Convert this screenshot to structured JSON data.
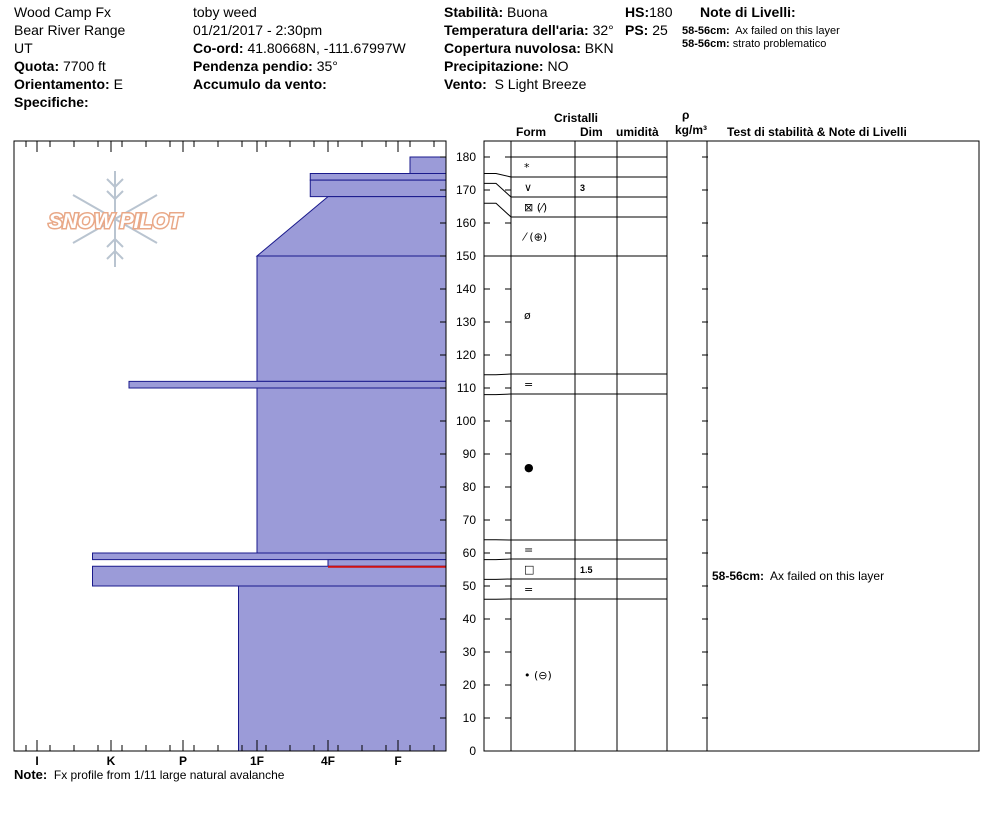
{
  "header": {
    "location": "Wood Camp  Fx",
    "range": "Bear River Range",
    "state": "UT",
    "observer": "toby weed",
    "datetime": "01/21/2017 - 2:30pm",
    "coord_label": "Co-ord:",
    "coord_value": "41.80668N, -111.67997W",
    "slope_label": "Pendenza pendio:",
    "slope_value": "35°",
    "wind_load_label": "Accumulo da vento:",
    "wind_load_value": "",
    "elevation_label": "Quota:",
    "elevation_value": "7700 ft",
    "aspect_label": "Orientamento:",
    "aspect_value": "E",
    "specifics_label": "Specifiche:",
    "specifics_value": "",
    "stability_label": "Stabilità:",
    "stability_value": "Buona",
    "air_temp_label": "Temperatura dell'aria:",
    "air_temp_value": "32°",
    "cloud_label": "Copertura nuvolosa:",
    "cloud_value": "BKN",
    "precip_label": "Precipitazione:",
    "precip_value": "NO",
    "wind_label": "Vento:",
    "wind_value": "S Light Breeze",
    "hs_label": "HS:",
    "hs_value": "180",
    "ps_label": "PS:",
    "ps_value": "25"
  },
  "layer_notes": {
    "title": "Note di Livelli:",
    "items": [
      {
        "depth": "58-56cm:",
        "text": "Ax failed on this layer"
      },
      {
        "depth": "58-56cm:",
        "text": "strato problematico"
      }
    ]
  },
  "columns": {
    "cristalli": "Cristalli",
    "form": "Form",
    "dim": "Dim",
    "umidita": "umidità",
    "rho": "ρ",
    "density_unit": "kg/m³",
    "tests": "Test di stabilità & Note di Livelli"
  },
  "logo_text": "SNOW PILOT",
  "note_label": "Note:",
  "note_text": "Fx profile from 1/11 large natural avalanche",
  "stability_note": {
    "depth": "58-56cm:",
    "text": "Ax failed on this layer"
  },
  "chart_data": {
    "type": "area",
    "title": "",
    "ylabel": "",
    "xlabel": "",
    "yrange": [
      0,
      180
    ],
    "yticks": [
      0,
      10,
      20,
      30,
      40,
      50,
      60,
      70,
      80,
      90,
      100,
      110,
      120,
      130,
      140,
      150,
      160,
      170,
      180
    ],
    "hardness_scale": [
      "I",
      "K",
      "P",
      "1F",
      "4F",
      "F"
    ],
    "hardness_profile": [
      {
        "top": 180,
        "bottom": 175,
        "hardness": "F+"
      },
      {
        "top": 175,
        "bottom": 173,
        "hardness": "4F-"
      },
      {
        "top": 173,
        "bottom": 168,
        "hardness": "4F-"
      },
      {
        "top": 168,
        "bottom": 150,
        "hardness": "4F to 1F"
      },
      {
        "top": 150,
        "bottom": 112,
        "hardness": "1F"
      },
      {
        "top": 112,
        "bottom": 110,
        "hardness": "K+"
      },
      {
        "top": 110,
        "bottom": 60,
        "hardness": "1F"
      },
      {
        "top": 60,
        "bottom": 58,
        "hardness": "K-"
      },
      {
        "top": 58,
        "bottom": 56,
        "hardness": "4F"
      },
      {
        "top": 56,
        "bottom": 50,
        "hardness": "K-"
      },
      {
        "top": 50,
        "bottom": 0,
        "hardness": "1F-"
      }
    ],
    "problem_layer": {
      "top": 56,
      "bottom": 56
    },
    "layer_boundaries": [
      180,
      175,
      172,
      166,
      150,
      114,
      108,
      64,
      58,
      52,
      46,
      0
    ],
    "crystals": [
      {
        "depth": 177,
        "form": "*",
        "dim": ""
      },
      {
        "depth": 171,
        "form": "∨",
        "dim": "3"
      },
      {
        "depth": 165,
        "form": "⊠ (⁄)",
        "dim": ""
      },
      {
        "depth": 156,
        "form": "⁄ (⊕)",
        "dim": ""
      },
      {
        "depth": 132,
        "form": "ø",
        "dim": ""
      },
      {
        "depth": 110,
        "form": "=",
        "dim": ""
      },
      {
        "depth": 86,
        "form": "●",
        "dim": ""
      },
      {
        "depth": 61,
        "form": "=",
        "dim": ""
      },
      {
        "depth": 55,
        "form": "□",
        "dim": "1.5"
      },
      {
        "depth": 49,
        "form": "=",
        "dim": ""
      },
      {
        "depth": 23,
        "form": "• (⊖)",
        "dim": ""
      }
    ]
  }
}
